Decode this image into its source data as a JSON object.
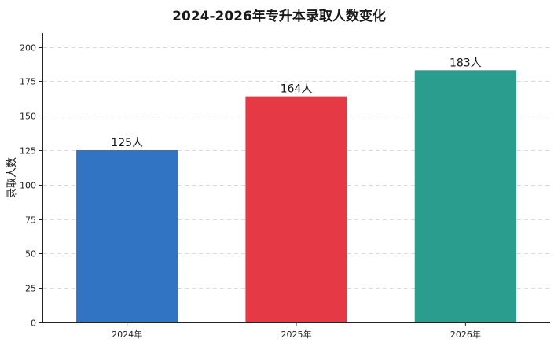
{
  "chart_data": {
    "type": "bar",
    "title": "2024-2026年专升本录取人数变化",
    "xlabel": "",
    "ylabel": "录取人数",
    "categories": [
      "2024年",
      "2025年",
      "2026年"
    ],
    "values": [
      125,
      164,
      183
    ],
    "data_labels": [
      "125人",
      "164人",
      "183人"
    ],
    "colors": [
      "#3274c4",
      "#e63946",
      "#2a9d8f"
    ],
    "ylim": [
      0,
      210
    ],
    "yticks": [
      0,
      25,
      50,
      75,
      100,
      125,
      150,
      175,
      200
    ],
    "grid": "horizontal-dashed",
    "legend": "none"
  }
}
